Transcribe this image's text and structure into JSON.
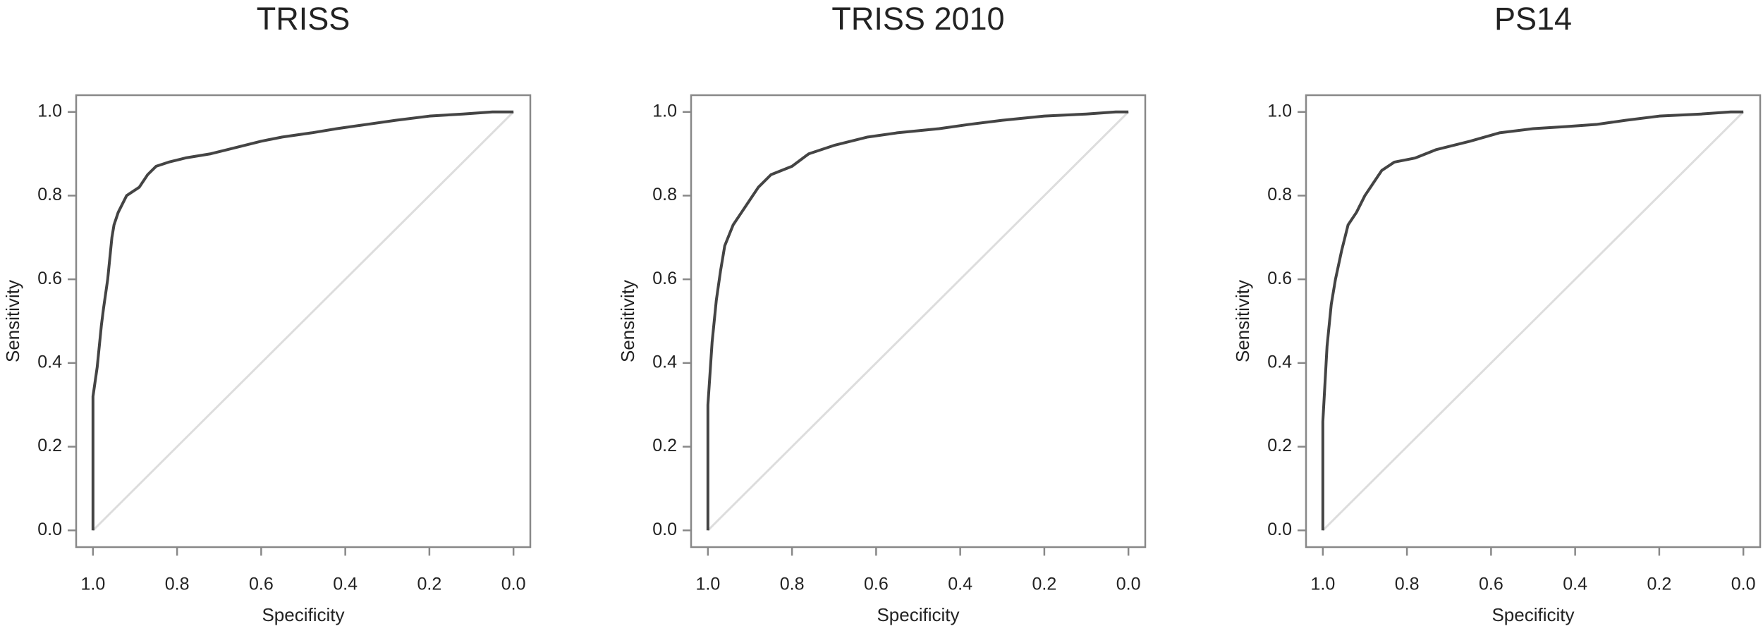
{
  "chart_data": [
    {
      "type": "line",
      "title": "TRISS",
      "x_label": "Specificity",
      "y_label": "Sensitivity",
      "xlim": [
        1.04,
        -0.04
      ],
      "ylim": [
        -0.04,
        1.04
      ],
      "xticks": [
        {
          "value": 1,
          "label": "1.0"
        },
        0.8,
        0.6,
        0.4,
        0.2,
        {
          "value": 0,
          "label": "0.0"
        }
      ],
      "yticks": [
        {
          "value": 0,
          "label": "0.0"
        },
        0.2,
        0.4,
        0.6,
        0.8,
        {
          "value": 1,
          "label": "1.0"
        }
      ],
      "series": [
        {
          "color": "#444444",
          "x": [
            1,
            1,
            0.99,
            0.98,
            0.975,
            0.965,
            0.96,
            0.955,
            0.95,
            0.94,
            0.93,
            0.92,
            0.89,
            0.87,
            0.85,
            0.82,
            0.78,
            0.72,
            0.68,
            0.6,
            0.55,
            0.48,
            0.42,
            0.35,
            0.28,
            0.2,
            0.12,
            0.05,
            0
          ],
          "values": [
            0,
            0.32,
            0.39,
            0.49,
            0.53,
            0.6,
            0.65,
            0.7,
            0.73,
            0.76,
            0.78,
            0.8,
            0.82,
            0.85,
            0.87,
            0.88,
            0.89,
            0.9,
            0.91,
            0.93,
            0.94,
            0.95,
            0.96,
            0.97,
            0.98,
            0.99,
            0.995,
            1,
            1
          ]
        },
        {
          "color": "#dddddd",
          "x": [
            1,
            0
          ],
          "values": [
            0,
            1
          ]
        }
      ]
    },
    {
      "type": "line",
      "title": "TRISS 2010",
      "x_label": "Specificity",
      "y_label": "Sensitivity",
      "xlim": [
        1.04,
        -0.04
      ],
      "ylim": [
        -0.04,
        1.04
      ],
      "xticks": [
        {
          "value": 1,
          "label": "1.0"
        },
        0.8,
        0.6,
        0.4,
        0.2,
        {
          "value": 0,
          "label": "0.0"
        }
      ],
      "yticks": [
        {
          "value": 0,
          "label": "0.0"
        },
        0.2,
        0.4,
        0.6,
        0.8,
        {
          "value": 1,
          "label": "1.0"
        }
      ],
      "series": [
        {
          "color": "#444444",
          "x": [
            1,
            1,
            0.99,
            0.98,
            0.97,
            0.96,
            0.94,
            0.92,
            0.9,
            0.88,
            0.85,
            0.8,
            0.76,
            0.7,
            0.62,
            0.55,
            0.45,
            0.38,
            0.3,
            0.2,
            0.1,
            0.03,
            0
          ],
          "values": [
            0,
            0.3,
            0.45,
            0.55,
            0.62,
            0.68,
            0.73,
            0.76,
            0.79,
            0.82,
            0.85,
            0.87,
            0.9,
            0.92,
            0.94,
            0.95,
            0.96,
            0.97,
            0.98,
            0.99,
            0.995,
            1,
            1
          ]
        },
        {
          "color": "#dddddd",
          "x": [
            1,
            0
          ],
          "values": [
            0,
            1
          ]
        }
      ]
    },
    {
      "type": "line",
      "title": "PS14",
      "x_label": "Specificity",
      "y_label": "Sensitivity",
      "xlim": [
        1.04,
        -0.04
      ],
      "ylim": [
        -0.04,
        1.04
      ],
      "xticks": [
        {
          "value": 1,
          "label": "1.0"
        },
        0.8,
        0.6,
        0.4,
        0.2,
        {
          "value": 0,
          "label": "0.0"
        }
      ],
      "yticks": [
        {
          "value": 0,
          "label": "0.0"
        },
        0.2,
        0.4,
        0.6,
        0.8,
        {
          "value": 1,
          "label": "1.0"
        }
      ],
      "series": [
        {
          "color": "#444444",
          "x": [
            1,
            1,
            0.99,
            0.98,
            0.97,
            0.955,
            0.94,
            0.92,
            0.9,
            0.88,
            0.86,
            0.83,
            0.78,
            0.73,
            0.65,
            0.58,
            0.5,
            0.42,
            0.35,
            0.28,
            0.2,
            0.1,
            0.03,
            0
          ],
          "values": [
            0,
            0.26,
            0.44,
            0.54,
            0.6,
            0.67,
            0.73,
            0.76,
            0.8,
            0.83,
            0.86,
            0.88,
            0.89,
            0.91,
            0.93,
            0.95,
            0.96,
            0.965,
            0.97,
            0.98,
            0.99,
            0.995,
            1,
            1
          ]
        },
        {
          "color": "#dddddd",
          "x": [
            1,
            0
          ],
          "values": [
            0,
            1
          ]
        }
      ]
    }
  ]
}
